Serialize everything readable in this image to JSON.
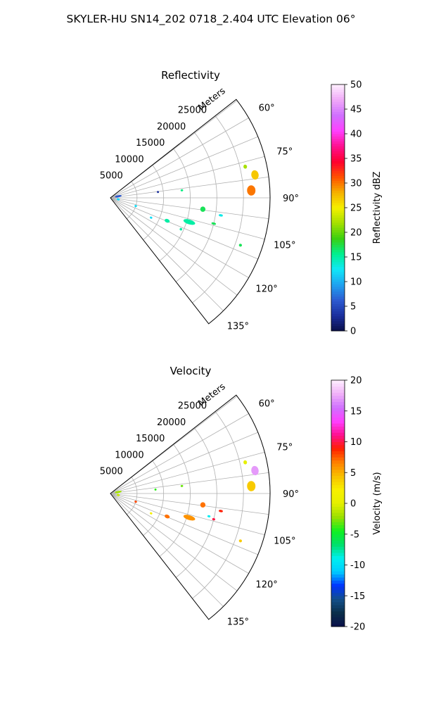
{
  "figure": {
    "title": "SKYLER-HU  SN14_202  0718_2.404 UTC Elevation 06°"
  },
  "palettes": {
    "reflectivity_stops": [
      "#0a0f4a",
      "#1b2f9e",
      "#2d5bd1",
      "#1fa2f0",
      "#10e8f8",
      "#00f090",
      "#3ad010",
      "#a4e000",
      "#f6f000",
      "#f6b000",
      "#ff5000",
      "#ff0030",
      "#ff1090",
      "#ff40ff",
      "#d070ff",
      "#f0a8f8",
      "#fff0ff"
    ],
    "velocity_stops": [
      "#0a0f4a",
      "#0b2f4a",
      "#14508a",
      "#0033ff",
      "#00ccff",
      "#00f0f0",
      "#00e06a",
      "#10f020",
      "#9ae000",
      "#e6f000",
      "#f8f000",
      "#f8c000",
      "#ff8000",
      "#ff2000",
      "#ff1090",
      "#ff40ff",
      "#d070ff",
      "#f0b0f8",
      "#fff0ff"
    ]
  },
  "chart_data": [
    {
      "type": "polar-sector",
      "title": "Reflectivity",
      "range_label": "Meters",
      "range_ticks": [
        5000,
        10000,
        15000,
        20000,
        25000
      ],
      "rmax": 30000,
      "azimuth_ticks": [
        "60°",
        "75°",
        "90°",
        "105°",
        "120°",
        "135°"
      ],
      "azimuth_tick_values": [
        60,
        75,
        90,
        105,
        120,
        135
      ],
      "azimuth_range": [
        52,
        142
      ],
      "grid": true,
      "colorbar": {
        "label": "Reflectivity dBZ",
        "min": 0,
        "max": 50,
        "ticks": [
          0,
          5,
          10,
          15,
          20,
          25,
          30,
          35,
          40,
          45,
          50
        ]
      },
      "echoes": [
        {
          "az": 81,
          "r": 27500,
          "rsize": 1300,
          "asize": 3.5,
          "value": 27
        },
        {
          "az": 87,
          "r": 26500,
          "rsize": 1500,
          "asize": 4.0,
          "value": 30
        },
        {
          "az": 77,
          "r": 26000,
          "rsize": 600,
          "asize": 1.5,
          "value": 22
        },
        {
          "az": 97,
          "r": 17500,
          "rsize": 900,
          "asize": 3.0,
          "value": 17
        },
        {
          "az": 107,
          "r": 15500,
          "rsize": 2200,
          "asize": 3.0,
          "value": 15
        },
        {
          "az": 112,
          "r": 11500,
          "rsize": 900,
          "asize": 3.0,
          "value": 15
        },
        {
          "az": 83,
          "r": 9000,
          "rsize": 300,
          "asize": 1.0,
          "value": 3
        },
        {
          "az": 84,
          "r": 13500,
          "rsize": 400,
          "asize": 1.0,
          "value": 16
        },
        {
          "az": 114,
          "r": 14500,
          "rsize": 400,
          "asize": 1.5,
          "value": 15
        },
        {
          "az": 104,
          "r": 20000,
          "rsize": 800,
          "asize": 1.0,
          "value": 17
        },
        {
          "az": 99,
          "r": 21000,
          "rsize": 700,
          "asize": 1.0,
          "value": 13
        },
        {
          "az": 110,
          "r": 26000,
          "rsize": 500,
          "asize": 1.0,
          "value": 17
        },
        {
          "az": 79,
          "r": 1500,
          "rsize": 1200,
          "asize": 5.0,
          "value": 6
        },
        {
          "az": 101,
          "r": 1500,
          "rsize": 500,
          "asize": 2.0,
          "value": 12
        },
        {
          "az": 108,
          "r": 5000,
          "rsize": 400,
          "asize": 1.0,
          "value": 12
        },
        {
          "az": 116,
          "r": 8500,
          "rsize": 400,
          "asize": 1.0,
          "value": 12
        }
      ]
    },
    {
      "type": "polar-sector",
      "title": "Velocity",
      "range_label": "Meters",
      "range_ticks": [
        5000,
        10000,
        15000,
        20000,
        25000
      ],
      "rmax": 30000,
      "azimuth_ticks": [
        "60°",
        "75°",
        "90°",
        "105°",
        "120°",
        "135°"
      ],
      "azimuth_tick_values": [
        60,
        75,
        90,
        105,
        120,
        135
      ],
      "azimuth_range": [
        52,
        142
      ],
      "grid": true,
      "colorbar": {
        "label": "Velocity (m/s)",
        "min": -20,
        "max": 20,
        "ticks": [
          -20,
          -15,
          -10,
          -5,
          0,
          5,
          10,
          15,
          20
        ]
      },
      "echoes": [
        {
          "az": 81,
          "r": 27500,
          "rsize": 1300,
          "asize": 3.5,
          "value": 17
        },
        {
          "az": 87,
          "r": 26500,
          "rsize": 1500,
          "asize": 4.0,
          "value": 4
        },
        {
          "az": 77,
          "r": 26000,
          "rsize": 600,
          "asize": 1.5,
          "value": 0
        },
        {
          "az": 97,
          "r": 17500,
          "rsize": 900,
          "asize": 3.0,
          "value": 7
        },
        {
          "az": 107,
          "r": 15500,
          "rsize": 2200,
          "asize": 3.0,
          "value": 6
        },
        {
          "az": 112,
          "r": 11500,
          "rsize": 900,
          "asize": 3.0,
          "value": 7
        },
        {
          "az": 84,
          "r": 13500,
          "rsize": 400,
          "asize": 1.0,
          "value": -3
        },
        {
          "az": 104,
          "r": 20000,
          "rsize": 500,
          "asize": 1.0,
          "value": 10
        },
        {
          "az": 99,
          "r": 21000,
          "rsize": 700,
          "asize": 1.0,
          "value": 9
        },
        {
          "az": 110,
          "r": 26000,
          "rsize": 500,
          "asize": 1.0,
          "value": 4
        },
        {
          "az": 79,
          "r": 1500,
          "rsize": 1200,
          "asize": 5.0,
          "value": -2
        },
        {
          "az": 101,
          "r": 1500,
          "rsize": 500,
          "asize": 2.0,
          "value": -1
        },
        {
          "az": 108,
          "r": 5000,
          "rsize": 400,
          "asize": 1.0,
          "value": 8
        },
        {
          "az": 116,
          "r": 8500,
          "rsize": 400,
          "asize": 1.0,
          "value": 2
        },
        {
          "az": 103,
          "r": 19000,
          "rsize": 500,
          "asize": 1.0,
          "value": -9
        },
        {
          "az": 85,
          "r": 8500,
          "rsize": 300,
          "asize": 1.0,
          "value": -4
        }
      ]
    }
  ]
}
